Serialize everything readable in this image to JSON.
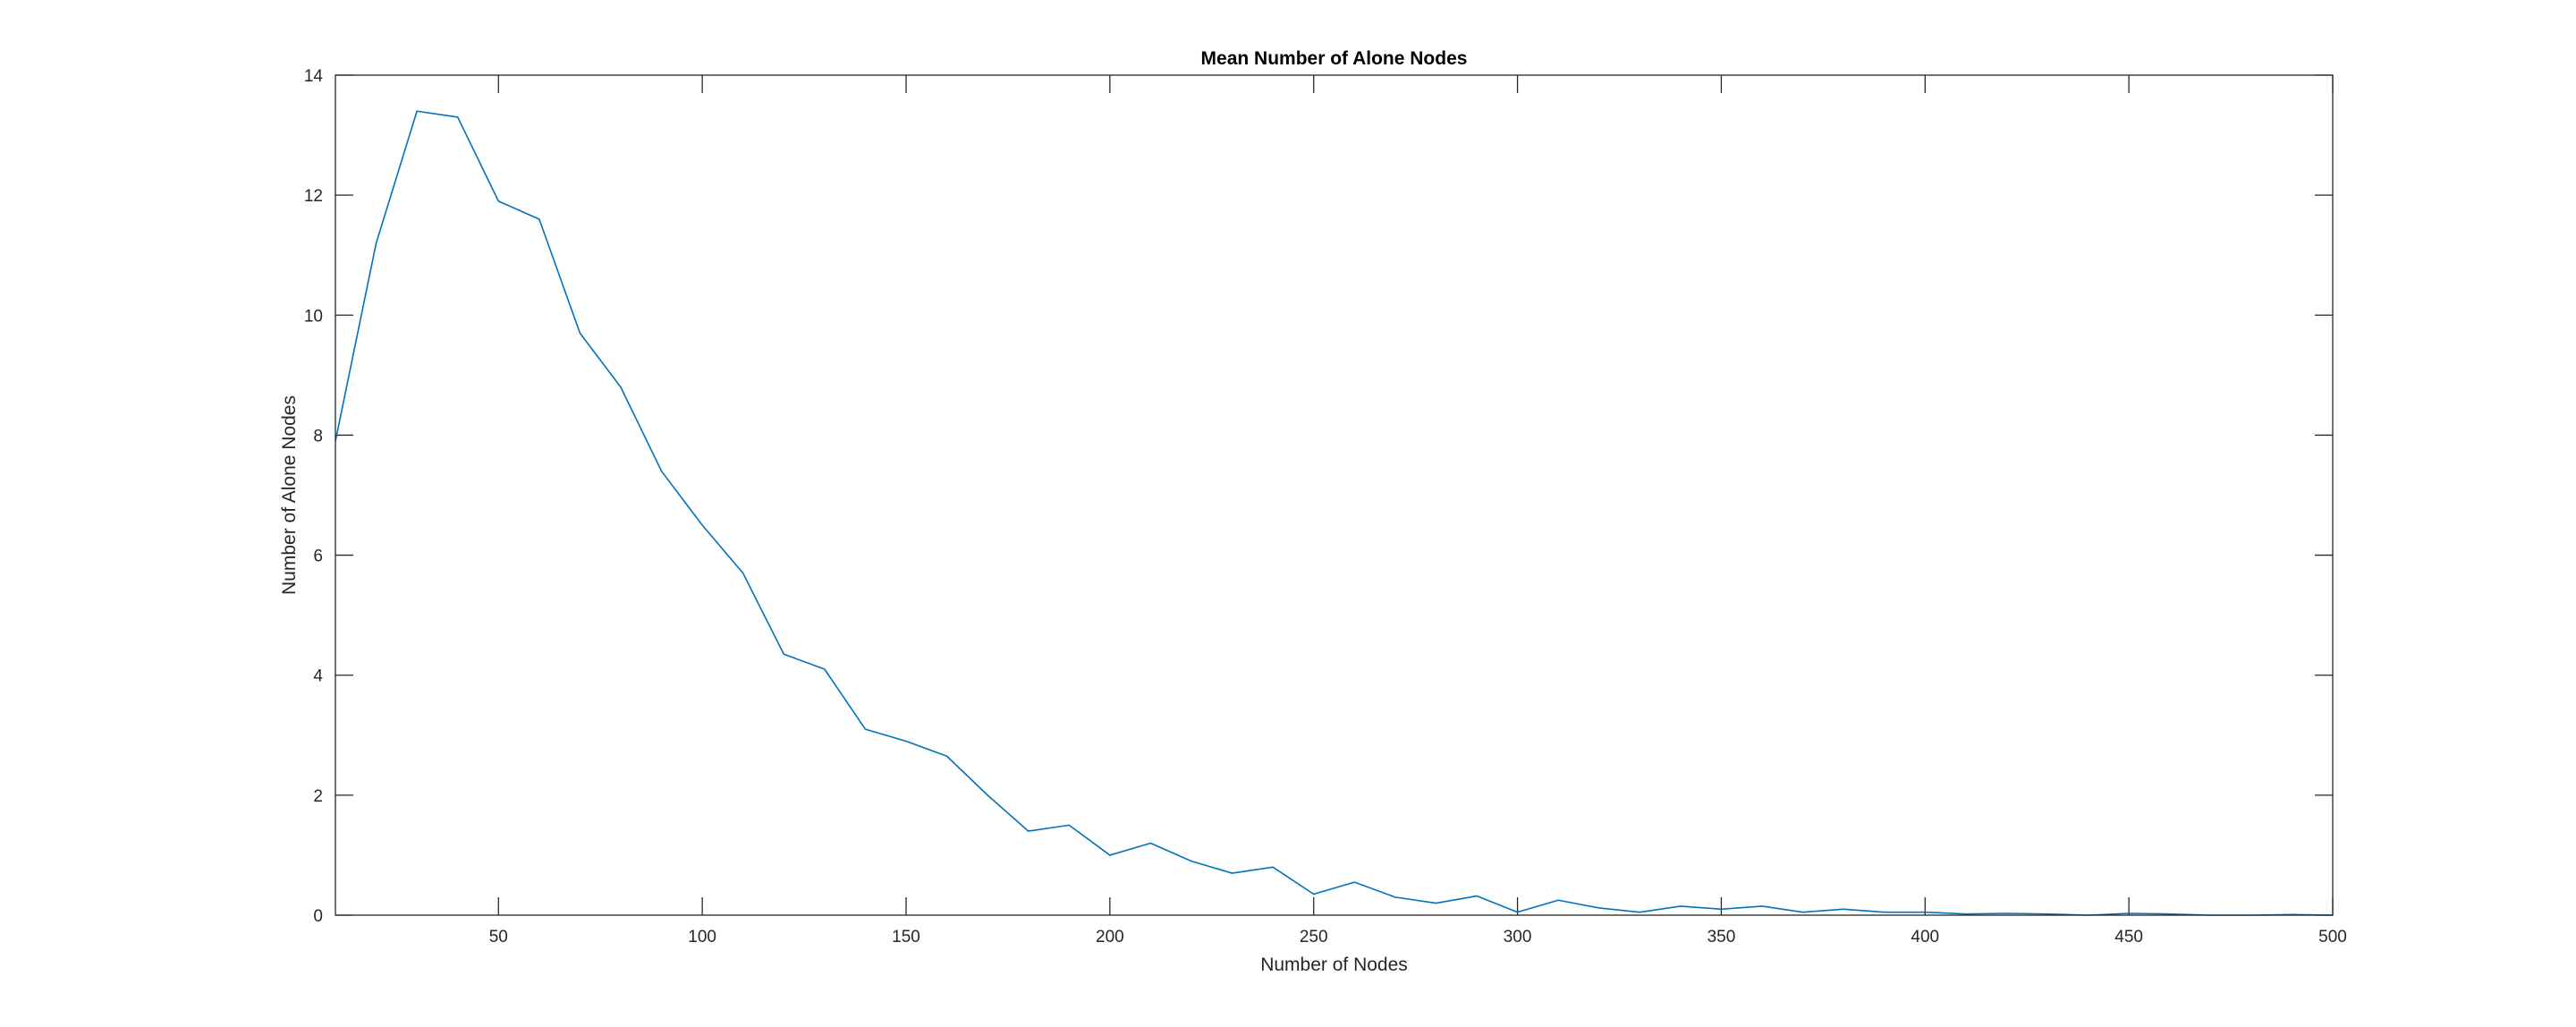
{
  "chart_data": {
    "type": "line",
    "title": "Mean Number of Alone Nodes",
    "xlabel": "Number of Nodes",
    "ylabel": "Number of Alone Nodes",
    "xlim": [
      10,
      500
    ],
    "ylim": [
      0,
      14
    ],
    "xticks": [
      50,
      100,
      150,
      200,
      250,
      300,
      350,
      400,
      450,
      500
    ],
    "yticks": [
      0,
      2,
      4,
      6,
      8,
      10,
      12,
      14
    ],
    "grid": false,
    "legend": "none",
    "series": [
      {
        "color": "#0072BD",
        "x": [
          10,
          20,
          30,
          40,
          50,
          60,
          70,
          80,
          90,
          100,
          110,
          120,
          130,
          140,
          150,
          160,
          170,
          180,
          190,
          200,
          210,
          220,
          230,
          240,
          250,
          260,
          270,
          280,
          290,
          300,
          310,
          320,
          330,
          340,
          350,
          360,
          370,
          380,
          390,
          400,
          410,
          420,
          430,
          440,
          450,
          460,
          470,
          480,
          490,
          500
        ],
        "y": [
          7.9,
          11.2,
          13.4,
          13.3,
          11.9,
          11.6,
          9.7,
          8.8,
          7.4,
          6.5,
          5.7,
          4.35,
          4.1,
          3.1,
          2.9,
          2.65,
          2.0,
          1.4,
          1.5,
          1.0,
          1.2,
          0.9,
          0.7,
          0.8,
          0.35,
          0.55,
          0.3,
          0.2,
          0.32,
          0.05,
          0.25,
          0.12,
          0.05,
          0.15,
          0.1,
          0.15,
          0.05,
          0.1,
          0.05,
          0.05,
          0.02,
          0.03,
          0.02,
          0.0,
          0.03,
          0.02,
          0.0,
          0.0,
          0.01,
          0.0
        ]
      }
    ]
  }
}
